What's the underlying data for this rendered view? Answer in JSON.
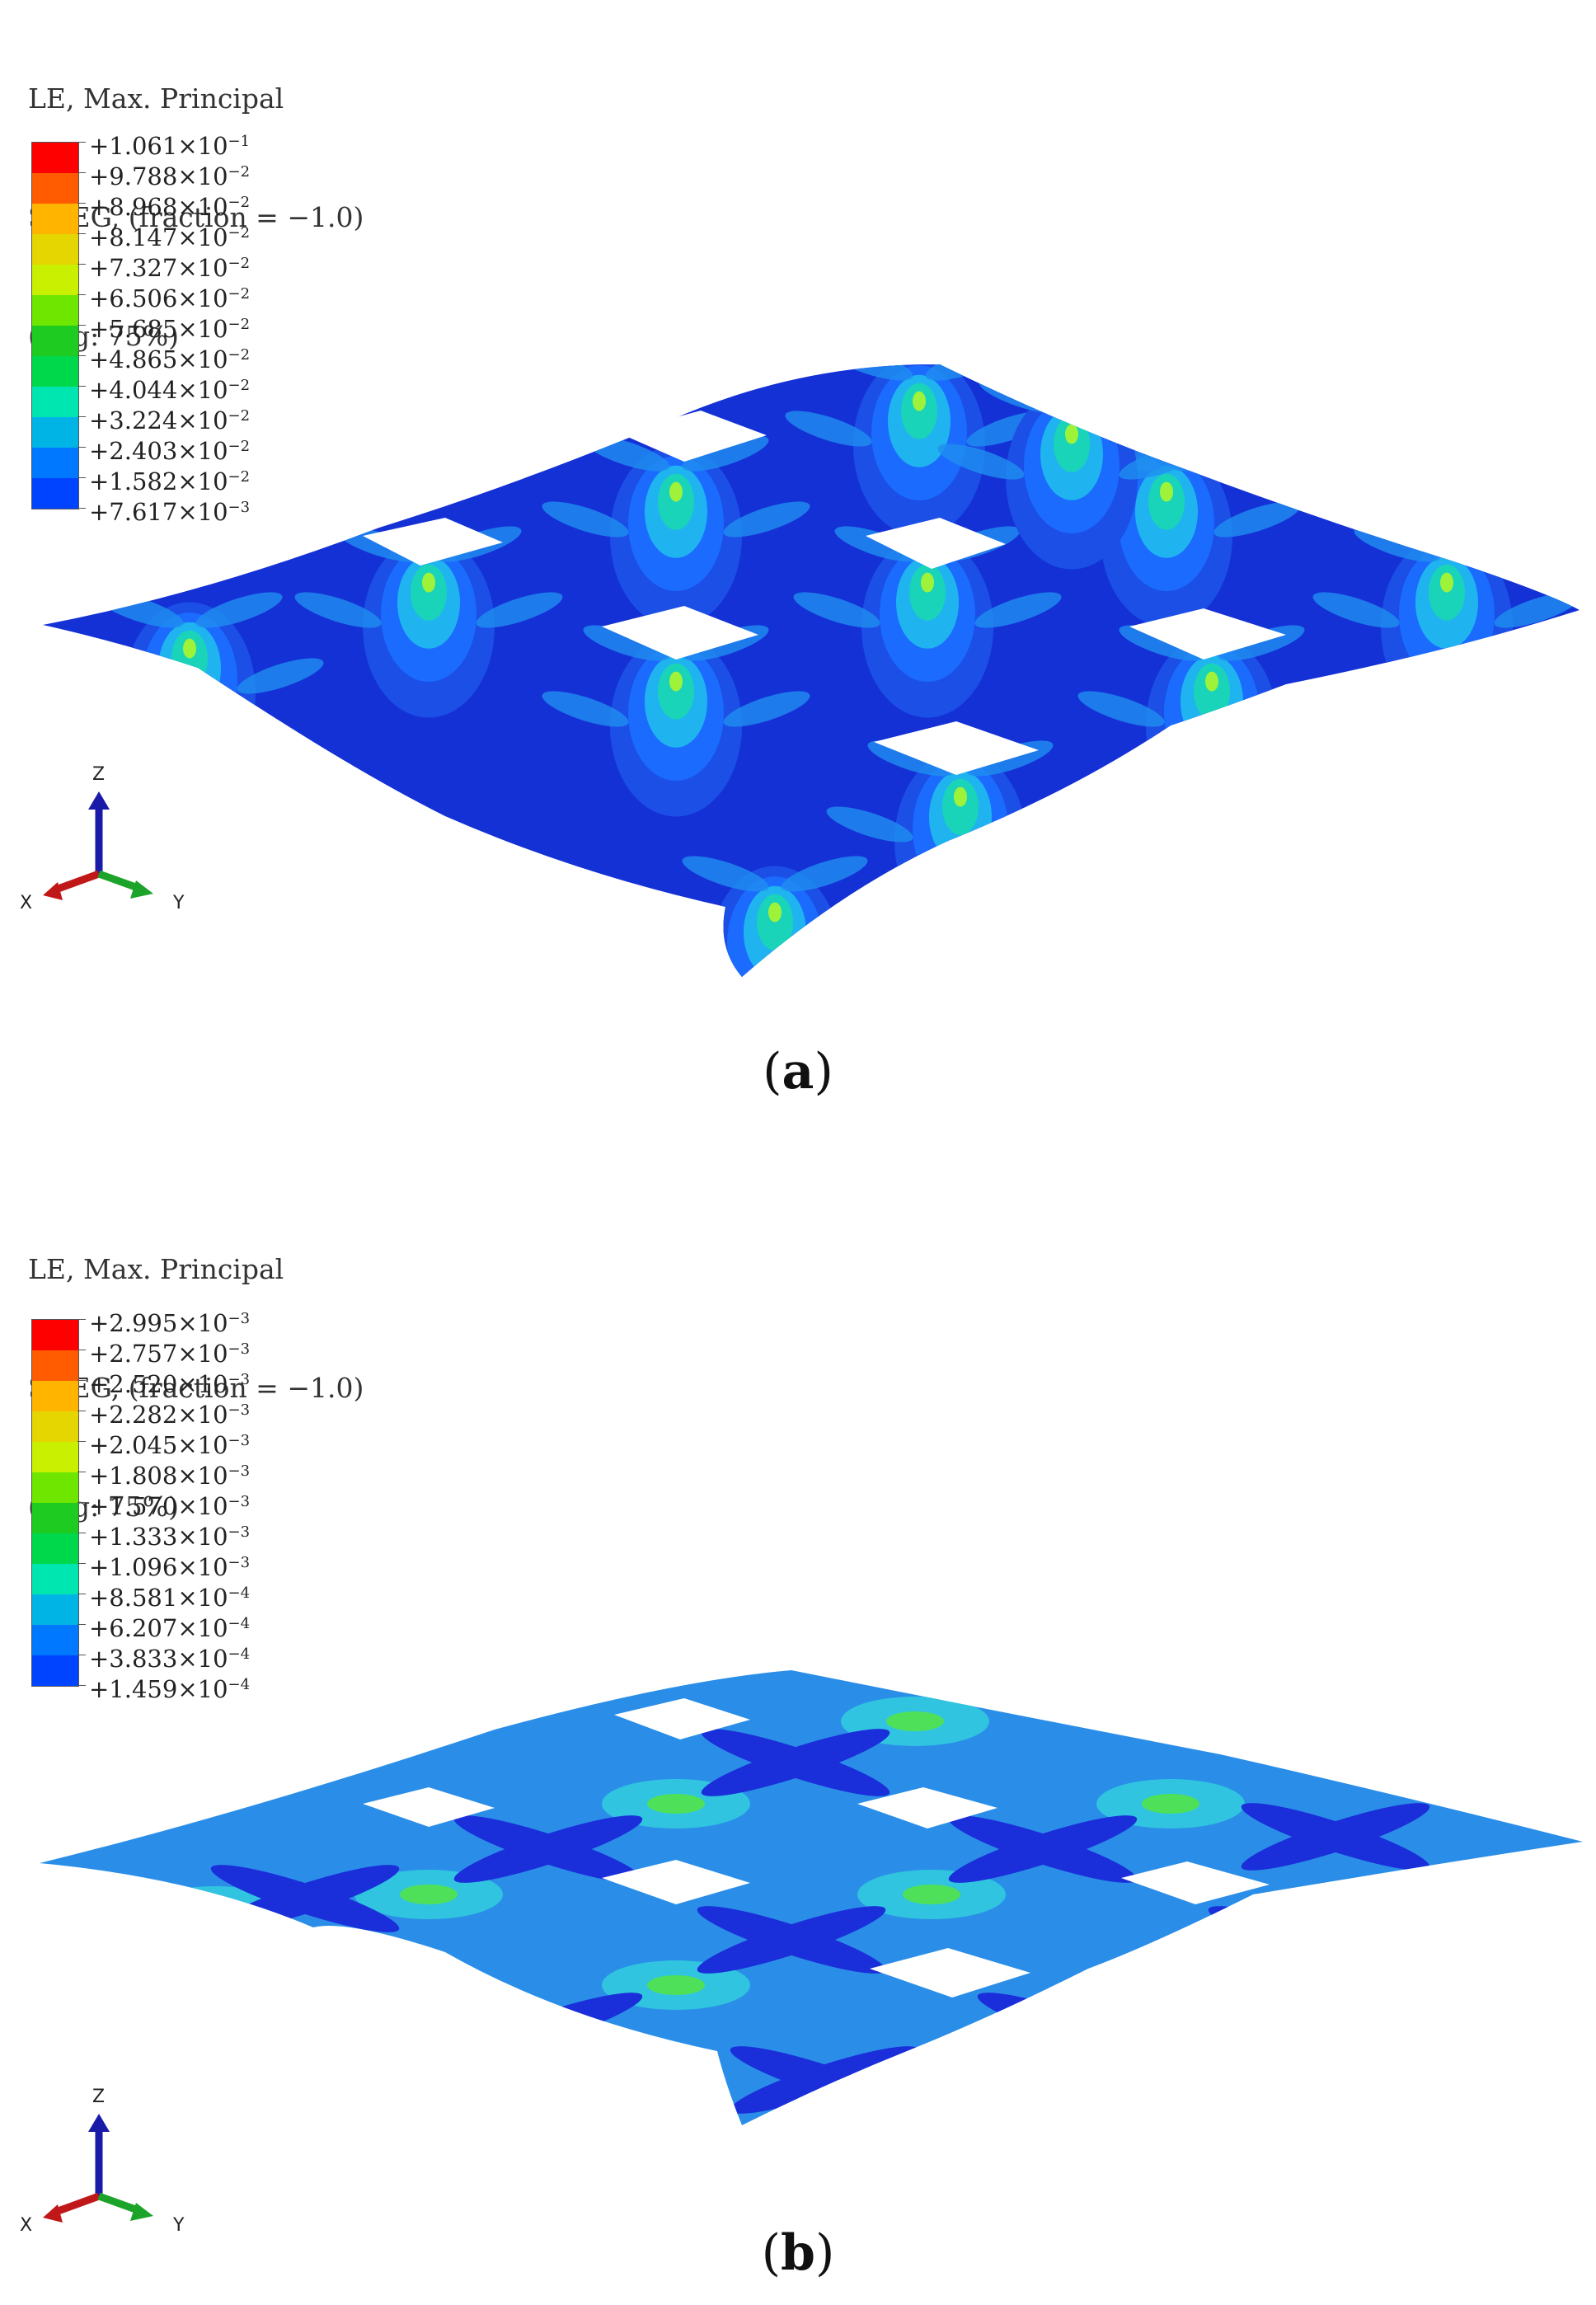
{
  "panels": [
    {
      "id": "a",
      "legend": {
        "title_line1": "LE, Max. Principal",
        "title_line2": "SNEG, (fraction = −1.0)",
        "title_line3": "(Avg: 75%)",
        "entries": [
          {
            "mantissa": "+1.061×10",
            "exp": "−1"
          },
          {
            "mantissa": "+9.788×10",
            "exp": "−2"
          },
          {
            "mantissa": "+8.968×10",
            "exp": "−2"
          },
          {
            "mantissa": "+8.147×10",
            "exp": "−2"
          },
          {
            "mantissa": "+7.327×10",
            "exp": "−2"
          },
          {
            "mantissa": "+6.506×10",
            "exp": "−2"
          },
          {
            "mantissa": "+5.685×10",
            "exp": "−2"
          },
          {
            "mantissa": "+4.865×10",
            "exp": "−2"
          },
          {
            "mantissa": "+4.044×10",
            "exp": "−2"
          },
          {
            "mantissa": "+3.224×10",
            "exp": "−2"
          },
          {
            "mantissa": "+2.403×10",
            "exp": "−2"
          },
          {
            "mantissa": "+1.582×10",
            "exp": "−2"
          },
          {
            "mantissa": "+7.617×10",
            "exp": "−3"
          }
        ]
      },
      "triad": {
        "z": "Z",
        "x": "X",
        "y": "Y"
      },
      "caption": "a"
    },
    {
      "id": "b",
      "legend": {
        "title_line1": "LE, Max. Principal",
        "title_line2": "SNEG, (fraction = −1.0)",
        "title_line3": "(Avg: 75%)",
        "entries": [
          {
            "mantissa": "+2.995×10",
            "exp": "−3"
          },
          {
            "mantissa": "+2.757×10",
            "exp": "−3"
          },
          {
            "mantissa": "+2.520×10",
            "exp": "−3"
          },
          {
            "mantissa": "+2.282×10",
            "exp": "−3"
          },
          {
            "mantissa": "+2.045×10",
            "exp": "−3"
          },
          {
            "mantissa": "+1.808×10",
            "exp": "−3"
          },
          {
            "mantissa": "+1.570×10",
            "exp": "−3"
          },
          {
            "mantissa": "+1.333×10",
            "exp": "−3"
          },
          {
            "mantissa": "+1.096×10",
            "exp": "−3"
          },
          {
            "mantissa": "+8.581×10",
            "exp": "−4"
          },
          {
            "mantissa": "+6.207×10",
            "exp": "−4"
          },
          {
            "mantissa": "+3.833×10",
            "exp": "−4"
          },
          {
            "mantissa": "+1.459×10",
            "exp": "−4"
          }
        ]
      },
      "triad": {
        "z": "Z",
        "x": "X",
        "y": "Y"
      },
      "caption": "b"
    }
  ],
  "colors": {
    "legend_scale": [
      "#ff0000",
      "#ff5b00",
      "#ffb400",
      "#e5d500",
      "#c9f000",
      "#6ee600",
      "#1ecb20",
      "#00d84c",
      "#00e6b0",
      "#00b4e6",
      "#0078ff",
      "#0044ff",
      "#0000ff"
    ],
    "mesh_a_base": "#1431d6",
    "mesh_a_contour1": "#1b6bff",
    "mesh_a_contour2": "#1fb4ef",
    "mesh_a_hot": "#9ef23a",
    "mesh_b_base": "#2a8ee8",
    "mesh_b_dark": "#1a2fd9",
    "mesh_b_light": "#30c4e0",
    "mesh_b_hot": "#4fe05a"
  }
}
